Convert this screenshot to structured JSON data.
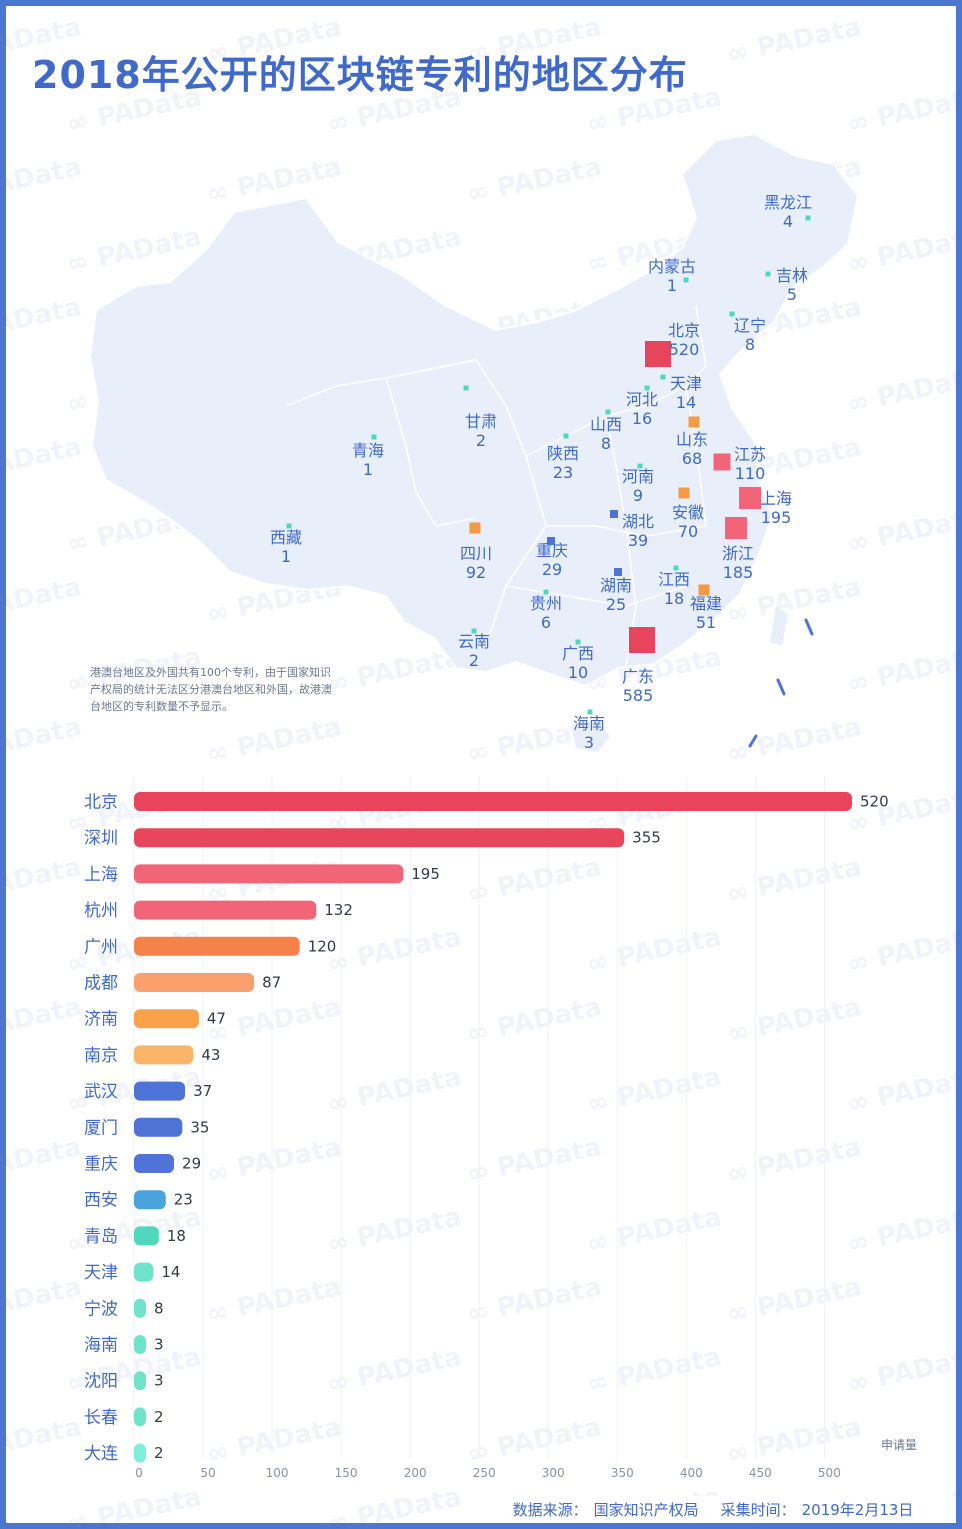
{
  "title": "2018年公开的区块链专利的地区分布",
  "watermark": "PAData",
  "map": {
    "note": "港澳台地区及外国共有100个专利，由于国家知识产权局的统计无法区分港澳台地区和外国，故港澳台地区的专利数量不予显示。",
    "provinces": [
      {
        "name": "黑龙江",
        "value": "4"
      },
      {
        "name": "内蒙古",
        "value": "1"
      },
      {
        "name": "吉林",
        "value": "5"
      },
      {
        "name": "辽宁",
        "value": "8"
      },
      {
        "name": "北京",
        "value": "520"
      },
      {
        "name": "天津",
        "value": "14"
      },
      {
        "name": "河北",
        "value": "16"
      },
      {
        "name": "甘肃",
        "value": "2"
      },
      {
        "name": "山西",
        "value": "8"
      },
      {
        "name": "山东",
        "value": "68"
      },
      {
        "name": "青海",
        "value": "1"
      },
      {
        "name": "陕西",
        "value": "23"
      },
      {
        "name": "江苏",
        "value": "110"
      },
      {
        "name": "河南",
        "value": "9"
      },
      {
        "name": "上海",
        "value": "195"
      },
      {
        "name": "安徽",
        "value": "70"
      },
      {
        "name": "湖北",
        "value": "39"
      },
      {
        "name": "西藏",
        "value": "1"
      },
      {
        "name": "四川",
        "value": "92"
      },
      {
        "name": "重庆",
        "value": "29"
      },
      {
        "name": "浙江",
        "value": "185"
      },
      {
        "name": "湖南",
        "value": "25"
      },
      {
        "name": "江西",
        "value": "18"
      },
      {
        "name": "贵州",
        "value": "6"
      },
      {
        "name": "福建",
        "value": "51"
      },
      {
        "name": "云南",
        "value": "2"
      },
      {
        "name": "广西",
        "value": "10"
      },
      {
        "name": "广东",
        "value": "585"
      },
      {
        "name": "海南",
        "value": "3"
      }
    ]
  },
  "chart_data": {
    "type": "bar",
    "orientation": "horizontal",
    "title": "2018年公开的区块链专利的地区分布",
    "xlabel": "申请量",
    "categories": [
      "北京",
      "深圳",
      "上海",
      "杭州",
      "广州",
      "成都",
      "济南",
      "南京",
      "武汉",
      "厦门",
      "重庆",
      "西安",
      "青岛",
      "天津",
      "宁波",
      "海南",
      "沈阳",
      "长春",
      "大连"
    ],
    "values": [
      520,
      355,
      195,
      132,
      120,
      87,
      47,
      43,
      37,
      35,
      29,
      23,
      18,
      14,
      8,
      3,
      3,
      2,
      2
    ],
    "xlim": [
      0,
      520
    ],
    "xticks": [
      0,
      50,
      100,
      150,
      200,
      250,
      300,
      350,
      400,
      450,
      500
    ],
    "colors": [
      "#e8455c",
      "#e8455c",
      "#f26478",
      "#f26478",
      "#f5824a",
      "#f9a06e",
      "#f9a24a",
      "#fbb56a",
      "#4f73d6",
      "#4f73d6",
      "#4f73d6",
      "#4aa3dc",
      "#4fd8be",
      "#6fe4cb",
      "#6fe4cb",
      "#6fe4cb",
      "#6fe4cb",
      "#6fe4cb",
      "#7ff0d8"
    ],
    "grid": true
  },
  "footer": {
    "source_label": "数据来源：",
    "source": "国家知识产权局",
    "date_label": "采集时间：",
    "date": "2019年2月13日"
  }
}
